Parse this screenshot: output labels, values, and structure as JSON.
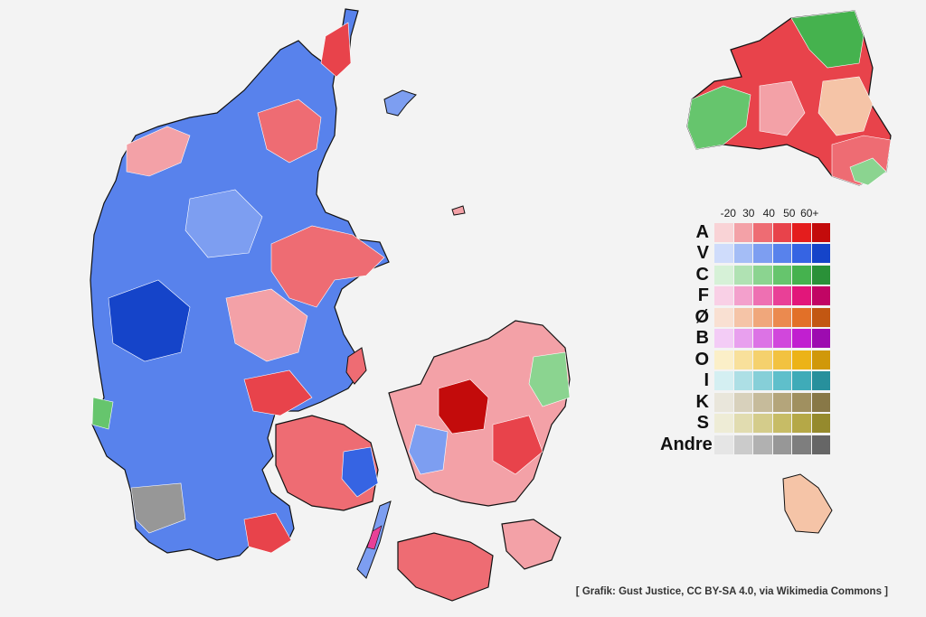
{
  "legend": {
    "headers": [
      "-20",
      "30",
      "40",
      "50",
      "60+"
    ],
    "rows": [
      {
        "label": "A",
        "colors": [
          "#f9d3d6",
          "#f3a1a7",
          "#ee6c73",
          "#e8434b",
          "#e41d1d",
          "#c30b0b"
        ]
      },
      {
        "label": "V",
        "colors": [
          "#cfdcfb",
          "#a4bdf6",
          "#7d9ef1",
          "#5882ec",
          "#3664e3",
          "#1544c9"
        ]
      },
      {
        "label": "C",
        "colors": [
          "#d6f1d7",
          "#b0e2b3",
          "#8bd490",
          "#66c56d",
          "#45b24e",
          "#2a9138"
        ]
      },
      {
        "label": "F",
        "colors": [
          "#f9d0e6",
          "#f3a0cc",
          "#ee70b2",
          "#e94097",
          "#e2167a",
          "#c10564"
        ]
      },
      {
        "label": "Ø",
        "colors": [
          "#f9e0d2",
          "#f5c4a7",
          "#f0a77b",
          "#eb8a4f",
          "#e27028",
          "#c25712"
        ]
      },
      {
        "label": "B",
        "colors": [
          "#f3ccf6",
          "#e8a0ee",
          "#dc73e5",
          "#d147dc",
          "#c11fd0",
          "#9d0bb0"
        ]
      },
      {
        "label": "O",
        "colors": [
          "#fbefc8",
          "#f8e09b",
          "#f5d16d",
          "#f2c240",
          "#ecb317",
          "#d0980a"
        ]
      },
      {
        "label": "I",
        "colors": [
          "#d4eff2",
          "#addfe5",
          "#86cfd8",
          "#5fbfcb",
          "#3fabb8",
          "#27909c"
        ]
      },
      {
        "label": "K",
        "colors": [
          "#e9e6db",
          "#d8d1bc",
          "#c6bb9b",
          "#b4a57b",
          "#a09060",
          "#887847"
        ]
      },
      {
        "label": "S",
        "colors": [
          "#eeecd6",
          "#e1dcb0",
          "#d4cc8b",
          "#c7bc66",
          "#b5a847",
          "#958a2d"
        ]
      },
      {
        "label": "Andre",
        "colors": [
          "#e5e5e5",
          "#cbcbcb",
          "#b1b1b1",
          "#979797",
          "#7e7e7e",
          "#666666"
        ]
      }
    ]
  },
  "credit": "[ Grafik: Gust Justice, CC BY-SA 4.0, via Wikimedia Commons ]",
  "palette": {
    "background": "#f3f3f3",
    "red": "#e8434b",
    "red_light": "#f3a1a7",
    "red_dark": "#d01414",
    "blue": "#3664e3",
    "blue_light": "#7d9ef1",
    "blue_dark": "#1544c9",
    "green": "#66c56d",
    "grey": "#979797",
    "pink": "#e94097",
    "peach": "#f5c4a7"
  }
}
